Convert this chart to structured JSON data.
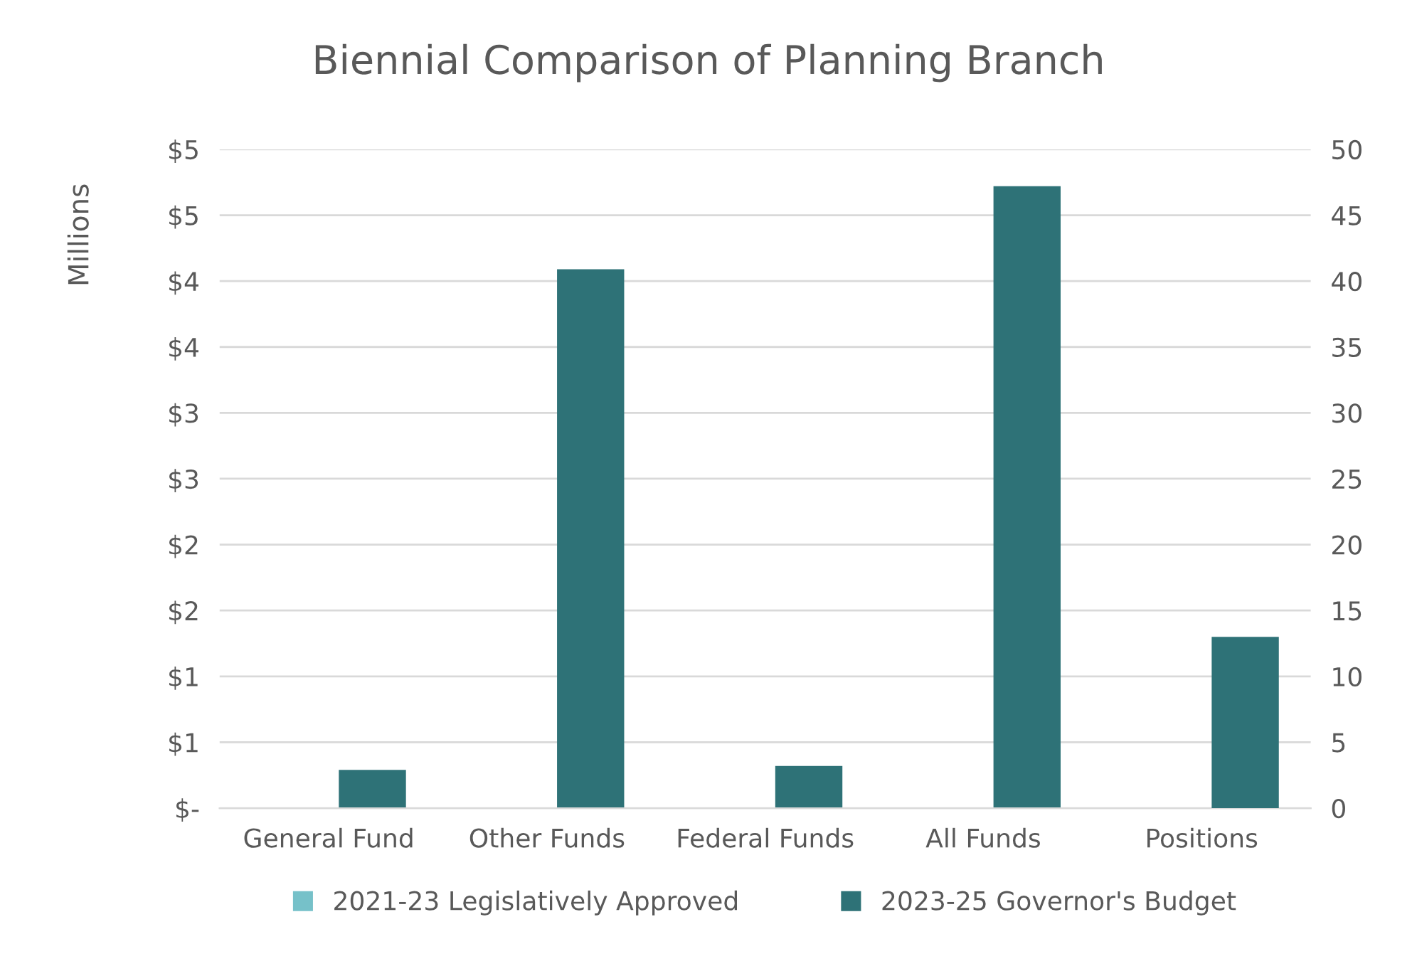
{
  "chart_data": {
    "type": "bar",
    "title": "Biennial Comparison of Planning Branch",
    "ylabel": "Millions",
    "categories": [
      "General Fund",
      "Other Funds",
      "Federal Funds",
      "All Funds",
      "Positions"
    ],
    "series": [
      {
        "name": "2021-23 Legislatively Approved",
        "color": "#76c1c9",
        "values": [
          0,
          0,
          0,
          0,
          null
        ]
      },
      {
        "name": "2023-25 Governor's Budget",
        "color": "#2e7277",
        "values": [
          0.29,
          4.09,
          0.32,
          4.72,
          null
        ]
      },
      {
        "color": "#2e7277",
        "axis": "y2",
        "values": [
          null,
          null,
          null,
          null,
          13
        ]
      }
    ],
    "ylim": [
      0,
      5
    ],
    "yticks": [
      {
        "value": 0,
        "label": "$-"
      },
      {
        "value": 0.5,
        "label": "$1"
      },
      {
        "value": 1,
        "label": "$1"
      },
      {
        "value": 1.5,
        "label": "$2"
      },
      {
        "value": 2,
        "label": "$2"
      },
      {
        "value": 2.5,
        "label": "$3"
      },
      {
        "value": 3,
        "label": "$3"
      },
      {
        "value": 3.5,
        "label": "$4"
      },
      {
        "value": 4,
        "label": "$4"
      },
      {
        "value": 4.5,
        "label": "$5"
      },
      {
        "value": 5,
        "label": "$5"
      }
    ],
    "y2lim": [
      0,
      50
    ],
    "y2ticks": [
      0,
      5,
      10,
      15,
      20,
      25,
      30,
      35,
      40,
      45,
      50
    ],
    "grid": "y",
    "legend": "bottom"
  }
}
